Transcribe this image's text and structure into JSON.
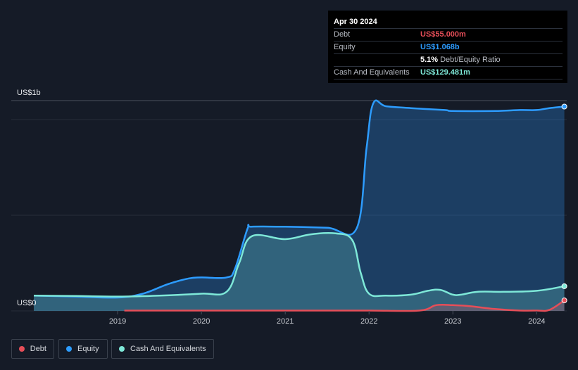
{
  "tooltip": {
    "date": "Apr 30 2024",
    "rows": [
      {
        "label": "Debt",
        "value": "US$55.000m",
        "color": "#e64e58"
      },
      {
        "label": "Equity",
        "value": "US$1.068b",
        "color": "#2d9cff"
      },
      {
        "label": "",
        "value": "5.1%",
        "extra": "Debt/Equity Ratio",
        "color": "#ffffff"
      },
      {
        "label": "Cash And Equivalents",
        "value": "US$129.481m",
        "color": "#7ee8d8"
      }
    ]
  },
  "legend": [
    {
      "label": "Debt",
      "color": "#e64e58"
    },
    {
      "label": "Equity",
      "color": "#2d9cff"
    },
    {
      "label": "Cash And Equivalents",
      "color": "#7ee8d8"
    }
  ],
  "chart_data": {
    "type": "area",
    "ylabel_top": "US$1b",
    "ylabel_bottom": "US$0",
    "ylim": [
      0,
      1.1
    ],
    "x_tick_labels": [
      "2019",
      "2020",
      "2021",
      "2022",
      "2023",
      "2024"
    ],
    "x_ticks": [
      2019,
      2020,
      2021,
      2022,
      2023,
      2024
    ],
    "xlim": [
      2018.0,
      2024.35
    ],
    "grid": true,
    "series": [
      {
        "name": "Equity",
        "color": "#2d9cff",
        "x": [
          2018.0,
          2018.5,
          2019.0,
          2019.3,
          2019.6,
          2019.85,
          2020.0,
          2020.3,
          2020.4,
          2020.55,
          2020.6,
          2021.0,
          2021.5,
          2021.85,
          2021.97,
          2022.05,
          2022.2,
          2022.5,
          2022.9,
          2023.0,
          2023.5,
          2023.8,
          2024.0,
          2024.15,
          2024.33
        ],
        "y": [
          0.08,
          0.075,
          0.07,
          0.09,
          0.14,
          0.17,
          0.175,
          0.175,
          0.22,
          0.43,
          0.44,
          0.44,
          0.435,
          0.43,
          0.85,
          1.085,
          1.07,
          1.06,
          1.05,
          1.045,
          1.045,
          1.05,
          1.05,
          1.06,
          1.068
        ]
      },
      {
        "name": "Cash And Equivalents",
        "color": "#7ee8d8",
        "x": [
          2018.0,
          2018.5,
          2019.0,
          2019.5,
          2020.0,
          2020.3,
          2020.45,
          2020.6,
          2021.0,
          2021.3,
          2021.6,
          2021.8,
          2021.9,
          2022.0,
          2022.2,
          2022.5,
          2022.7,
          2022.85,
          2023.0,
          2023.1,
          2023.3,
          2023.6,
          2024.0,
          2024.33
        ],
        "y": [
          0.08,
          0.078,
          0.075,
          0.08,
          0.09,
          0.1,
          0.25,
          0.39,
          0.375,
          0.4,
          0.405,
          0.37,
          0.2,
          0.09,
          0.08,
          0.085,
          0.105,
          0.11,
          0.085,
          0.085,
          0.1,
          0.1,
          0.105,
          0.129
        ]
      },
      {
        "name": "Debt",
        "color": "#e64e58",
        "x": [
          2019.08,
          2019.5,
          2020.0,
          2020.5,
          2021.0,
          2021.5,
          2022.0,
          2022.6,
          2022.8,
          2023.0,
          2023.2,
          2023.5,
          2023.8,
          2024.0,
          2024.15,
          2024.33
        ],
        "y": [
          0.002,
          0.002,
          0.002,
          0.002,
          0.002,
          0.002,
          0.002,
          0.002,
          0.03,
          0.03,
          0.025,
          0.01,
          0.002,
          0.002,
          0.005,
          0.055
        ]
      }
    ]
  }
}
